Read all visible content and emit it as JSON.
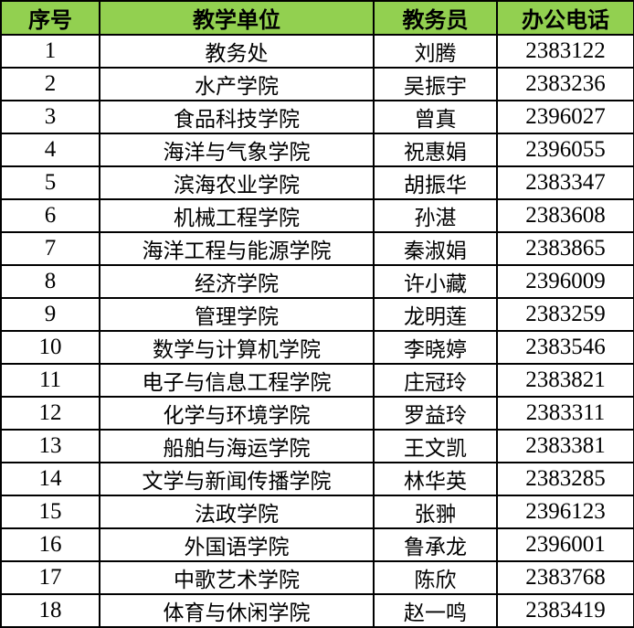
{
  "header_color": "#92d050",
  "headers": [
    "序号",
    "教学单位",
    "教务员",
    "办公电话"
  ],
  "rows": [
    [
      "1",
      "教务处",
      "刘腾",
      "2383122"
    ],
    [
      "2",
      "水产学院",
      "吴振宇",
      "2383236"
    ],
    [
      "3",
      "食品科技学院",
      "曾真",
      "2396027"
    ],
    [
      "4",
      "海洋与气象学院",
      "祝惠娟",
      "2396055"
    ],
    [
      "5",
      "滨海农业学院",
      "胡振华",
      "2383347"
    ],
    [
      "6",
      "机械工程学院",
      "孙湛",
      "2383608"
    ],
    [
      "7",
      "海洋工程与能源学院",
      "秦淑娟",
      "2383865"
    ],
    [
      "8",
      "经济学院",
      "许小藏",
      "2396009"
    ],
    [
      "9",
      "管理学院",
      "龙明莲",
      "2383259"
    ],
    [
      "10",
      "数学与计算机学院",
      "李晓婷",
      "2383546"
    ],
    [
      "11",
      "电子与信息工程学院",
      "庄冠玲",
      "2383821"
    ],
    [
      "12",
      "化学与环境学院",
      "罗益玲",
      "2383311"
    ],
    [
      "13",
      "船舶与海运学院",
      "王文凯",
      "2383381"
    ],
    [
      "14",
      "文学与新闻传播学院",
      "林华英",
      "2383285"
    ],
    [
      "15",
      "法政学院",
      "张翀",
      "2396123"
    ],
    [
      "16",
      "外国语学院",
      "鲁承龙",
      "2396001"
    ],
    [
      "17",
      "中歌艺术学院",
      "陈欣",
      "2383768"
    ],
    [
      "18",
      "体育与休闲学院",
      "赵一鸣",
      "2383419"
    ]
  ]
}
